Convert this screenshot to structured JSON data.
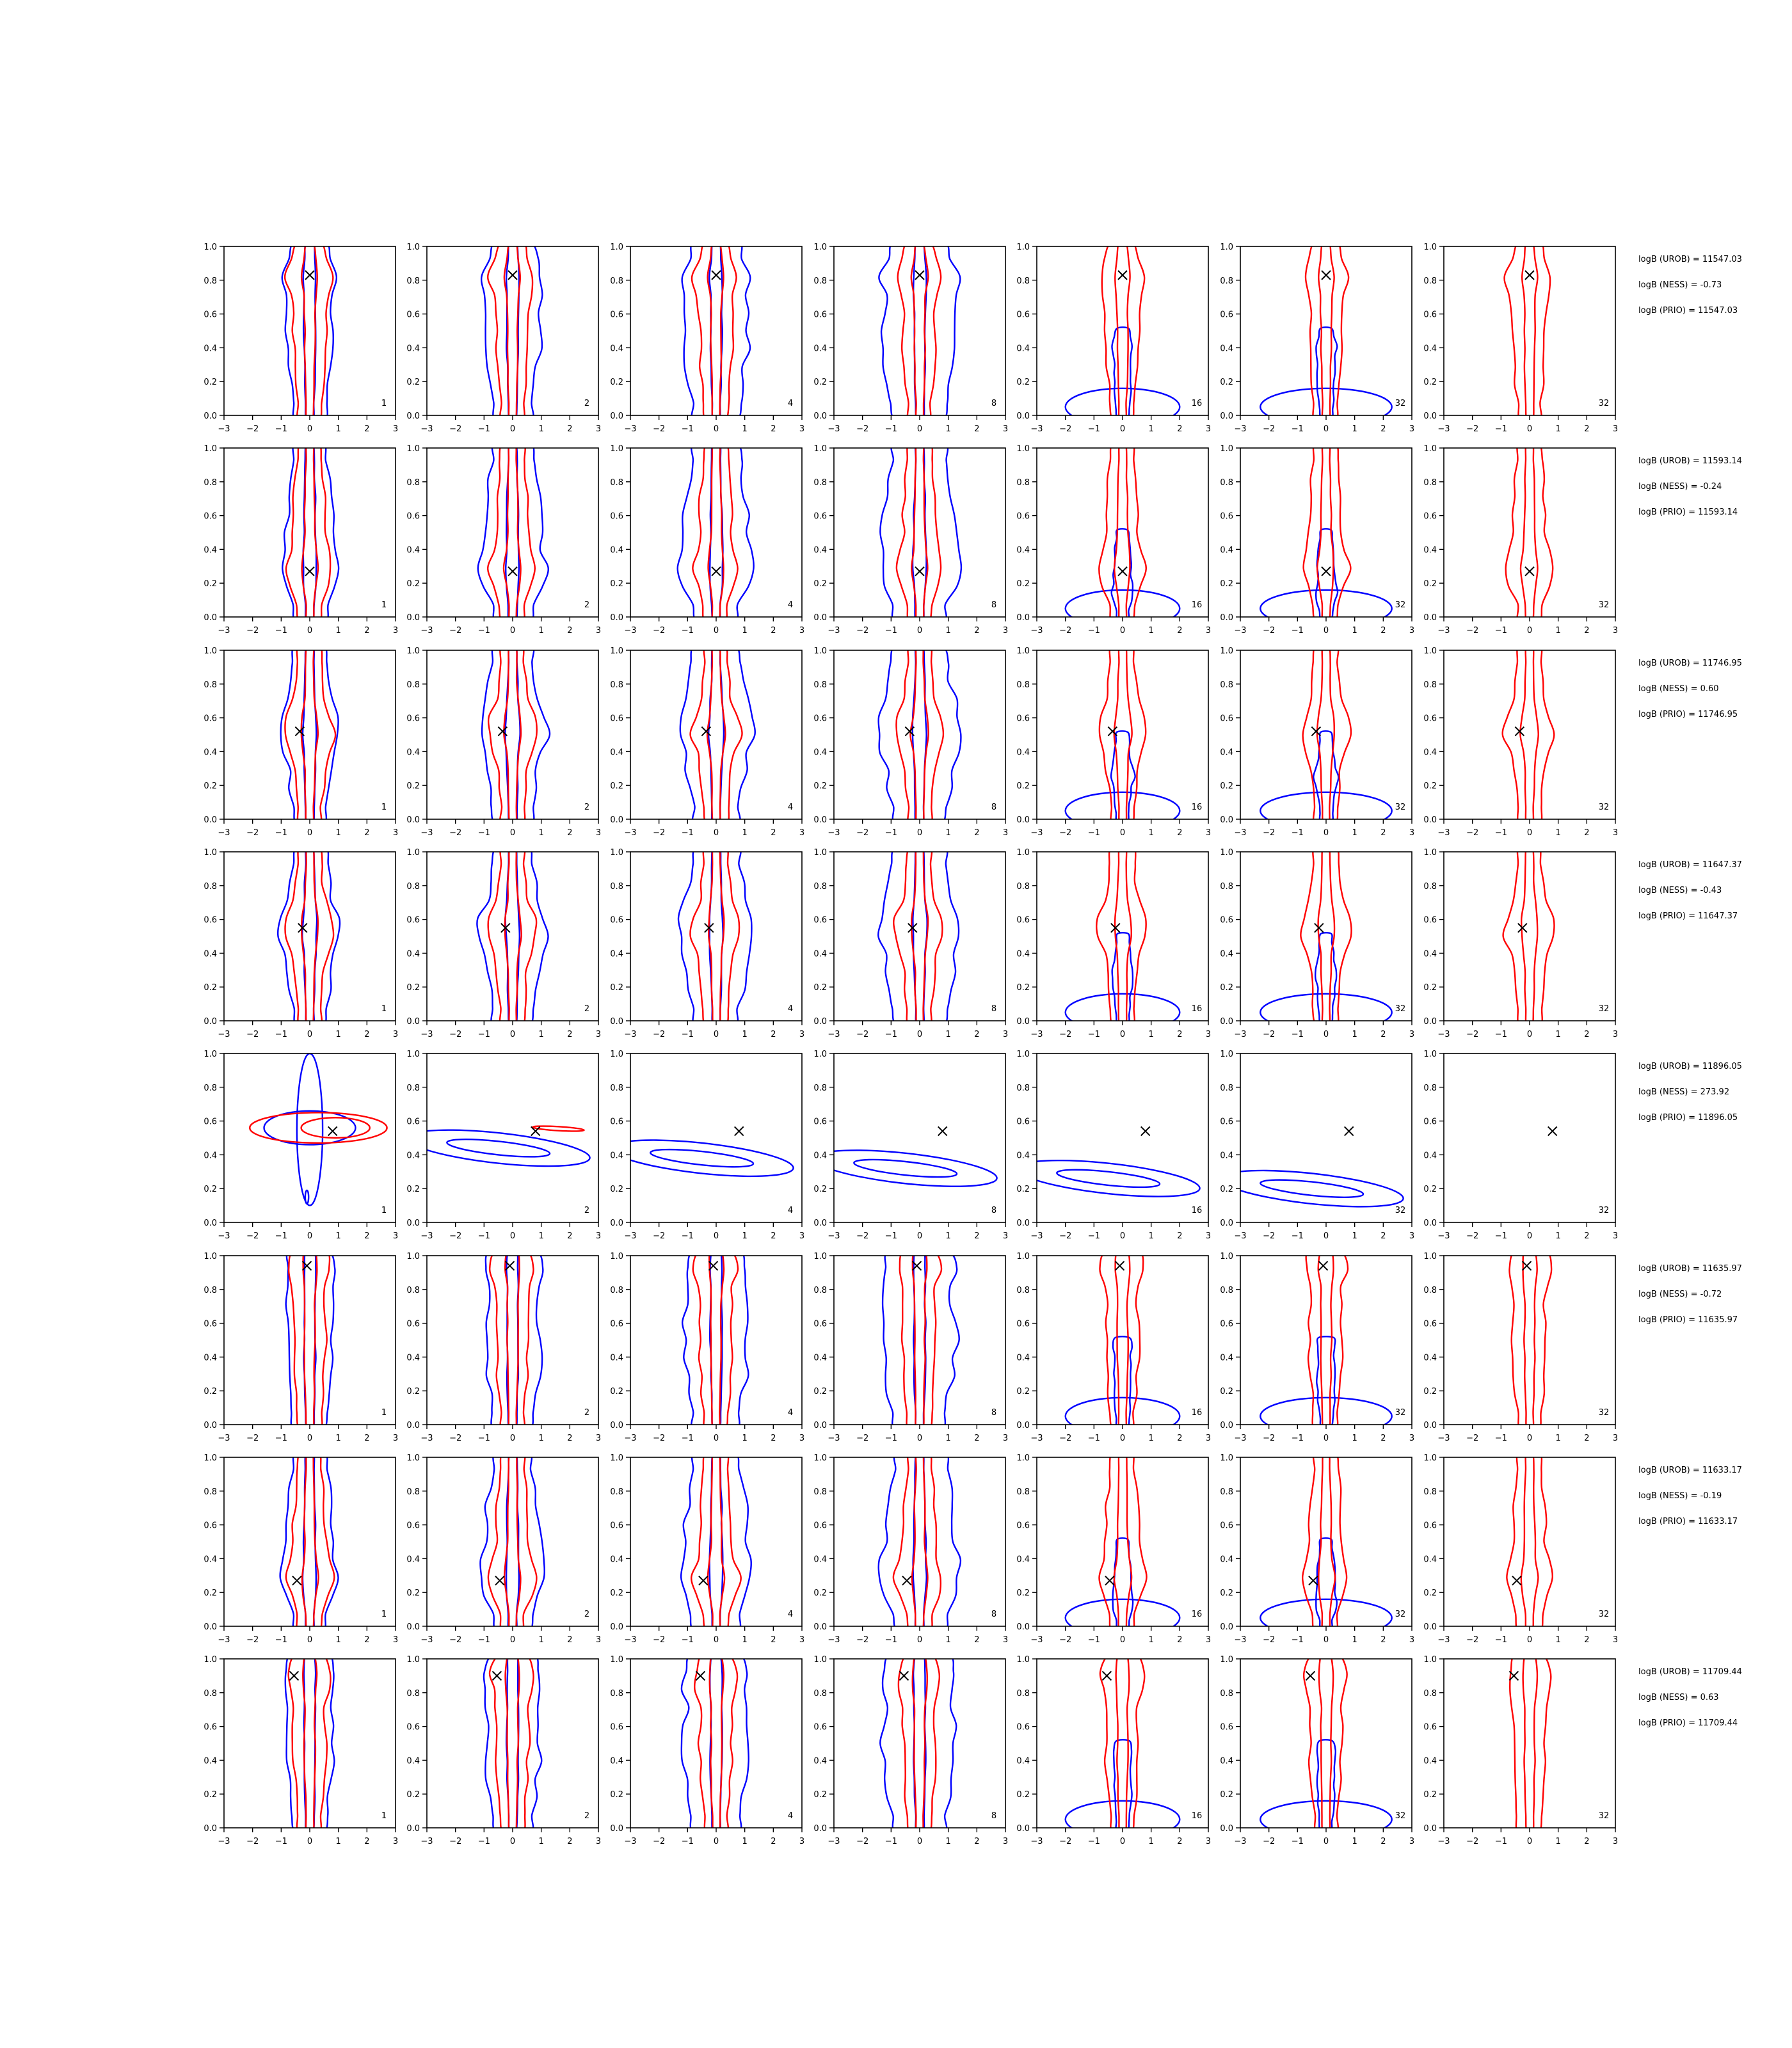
{
  "colors": {
    "curve_a": "#0000ff",
    "curve_b": "#ff0000",
    "marker": "#000000",
    "axes": "#000000"
  },
  "panel_labels": [
    "1",
    "2",
    "4",
    "8",
    "16",
    "32",
    "32"
  ],
  "chart_data": {
    "type": "contour",
    "layout": "8 rows x 7 columns of contour panels",
    "xlim": [
      -3,
      3
    ],
    "ylim": [
      0,
      1
    ],
    "xticks": [
      "−3",
      "−2",
      "−1",
      "0",
      "1",
      "2",
      "3"
    ],
    "yticks": [
      "0.0",
      "0.2",
      "0.4",
      "0.6",
      "0.8",
      "1.0"
    ],
    "grid": false,
    "rows": [
      {
        "marker": [
          0.0,
          0.83
        ],
        "shape": "vertical",
        "stats": [
          "logB (UROB) = 11547.03",
          "logB (NESS) = -0.73",
          "logB (PRIO) = 11547.03"
        ]
      },
      {
        "marker": [
          0.0,
          0.27
        ],
        "shape": "vertical",
        "stats": [
          "logB (UROB) = 11593.14",
          "logB (NESS) = -0.24",
          "logB (PRIO) = 11593.14"
        ]
      },
      {
        "marker": [
          -0.35,
          0.52
        ],
        "shape": "vertical",
        "stats": [
          "logB (UROB) = 11746.95",
          "logB (NESS) = 0.60",
          "logB (PRIO) = 11746.95"
        ]
      },
      {
        "marker": [
          -0.25,
          0.55
        ],
        "shape": "vertical",
        "stats": [
          "logB (UROB) = 11647.37",
          "logB (NESS) = -0.43",
          "logB (PRIO) = 11647.37"
        ]
      },
      {
        "marker": [
          0.8,
          0.54
        ],
        "shape": "horizontal",
        "stats": [
          "logB (UROB) = 11896.05",
          "logB (NESS) = 273.92",
          "logB (PRIO) = 11896.05"
        ]
      },
      {
        "marker": [
          -0.1,
          0.94
        ],
        "shape": "vertical",
        "stats": [
          "logB (UROB) = 11635.97",
          "logB (NESS) = -0.72",
          "logB (PRIO) = 11635.97"
        ]
      },
      {
        "marker": [
          -0.45,
          0.27
        ],
        "shape": "vertical",
        "stats": [
          "logB (UROB) = 11633.17",
          "logB (NESS) = -0.19",
          "logB (PRIO) = 11633.17"
        ]
      },
      {
        "marker": [
          -0.55,
          0.9
        ],
        "shape": "vertical",
        "stats": [
          "logB (UROB) = 11709.44",
          "logB (NESS) = 0.63",
          "logB (PRIO) = 11709.44"
        ]
      }
    ]
  }
}
